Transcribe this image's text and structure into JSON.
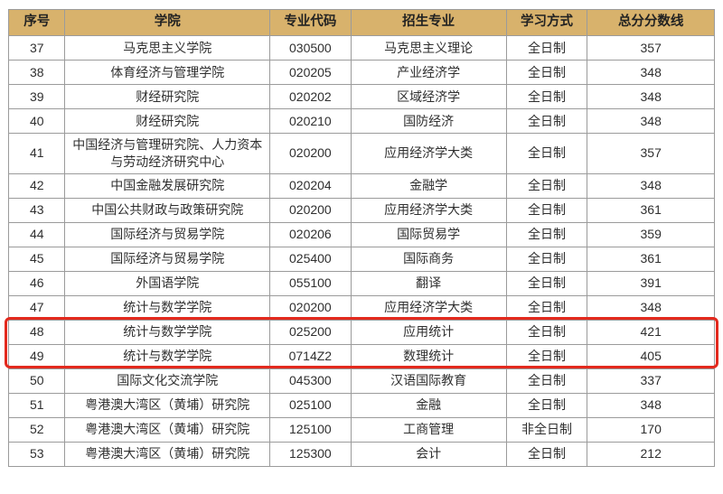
{
  "table": {
    "columns": [
      {
        "key": "no",
        "label": "序号"
      },
      {
        "key": "college",
        "label": "学院"
      },
      {
        "key": "code",
        "label": "专业代码"
      },
      {
        "key": "major",
        "label": "招生专业"
      },
      {
        "key": "mode",
        "label": "学习方式"
      },
      {
        "key": "score",
        "label": "总分分数线"
      }
    ],
    "rows": [
      {
        "no": "37",
        "college": "马克思主义学院",
        "code": "030500",
        "major": "马克思主义理论",
        "mode": "全日制",
        "score": "357",
        "highlight": false
      },
      {
        "no": "38",
        "college": "体育经济与管理学院",
        "code": "020205",
        "major": "产业经济学",
        "mode": "全日制",
        "score": "348",
        "highlight": false
      },
      {
        "no": "39",
        "college": "财经研究院",
        "code": "020202",
        "major": "区域经济学",
        "mode": "全日制",
        "score": "348",
        "highlight": false
      },
      {
        "no": "40",
        "college": "财经研究院",
        "code": "020210",
        "major": "国防经济",
        "mode": "全日制",
        "score": "348",
        "highlight": false
      },
      {
        "no": "41",
        "college": "中国经济与管理研究院、人力资本与劳动经济研究中心",
        "code": "020200",
        "major": "应用经济学大类",
        "mode": "全日制",
        "score": "357",
        "highlight": false
      },
      {
        "no": "42",
        "college": "中国金融发展研究院",
        "code": "020204",
        "major": "金融学",
        "mode": "全日制",
        "score": "348",
        "highlight": false
      },
      {
        "no": "43",
        "college": "中国公共财政与政策研究院",
        "code": "020200",
        "major": "应用经济学大类",
        "mode": "全日制",
        "score": "361",
        "highlight": false
      },
      {
        "no": "44",
        "college": "国际经济与贸易学院",
        "code": "020206",
        "major": "国际贸易学",
        "mode": "全日制",
        "score": "359",
        "highlight": false
      },
      {
        "no": "45",
        "college": "国际经济与贸易学院",
        "code": "025400",
        "major": "国际商务",
        "mode": "全日制",
        "score": "361",
        "highlight": false
      },
      {
        "no": "46",
        "college": "外国语学院",
        "code": "055100",
        "major": "翻译",
        "mode": "全日制",
        "score": "391",
        "highlight": false
      },
      {
        "no": "47",
        "college": "统计与数学学院",
        "code": "020200",
        "major": "应用经济学大类",
        "mode": "全日制",
        "score": "348",
        "highlight": false
      },
      {
        "no": "48",
        "college": "统计与数学学院",
        "code": "025200",
        "major": "应用统计",
        "mode": "全日制",
        "score": "421",
        "highlight": true
      },
      {
        "no": "49",
        "college": "统计与数学学院",
        "code": "0714Z2",
        "major": "数理统计",
        "mode": "全日制",
        "score": "405",
        "highlight": true
      },
      {
        "no": "50",
        "college": "国际文化交流学院",
        "code": "045300",
        "major": "汉语国际教育",
        "mode": "全日制",
        "score": "337",
        "highlight": false
      },
      {
        "no": "51",
        "college": "粤港澳大湾区（黄埔）研究院",
        "code": "025100",
        "major": "金融",
        "mode": "全日制",
        "score": "348",
        "highlight": false
      },
      {
        "no": "52",
        "college": "粤港澳大湾区（黄埔）研究院",
        "code": "125100",
        "major": "工商管理",
        "mode": "非全日制",
        "score": "170",
        "highlight": false
      },
      {
        "no": "53",
        "college": "粤港澳大湾区（黄埔）研究院",
        "code": "125300",
        "major": "会计",
        "mode": "全日制",
        "score": "212",
        "highlight": false
      }
    ]
  },
  "highlight": {
    "rows": [
      "48",
      "49"
    ]
  },
  "colors": {
    "header_bg": "#d8b26c",
    "border": "#9b9b9b",
    "text": "#2f2f2f",
    "highlight_red": "#e3291d",
    "page_bg": "#ffffff"
  }
}
